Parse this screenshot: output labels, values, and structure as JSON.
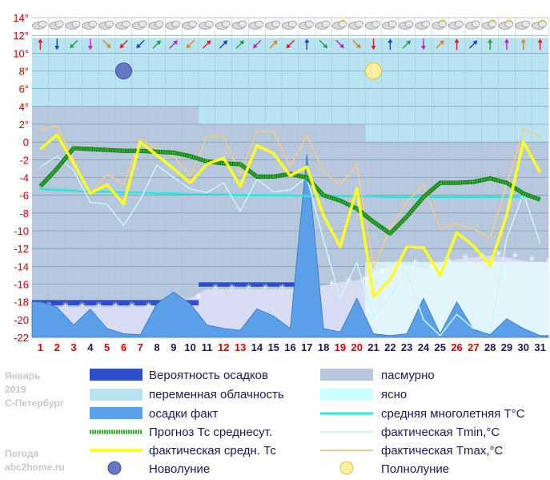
{
  "chart_data": {
    "type": "line",
    "ylim": [
      -22,
      14
    ],
    "y_ticks": [
      14,
      12,
      10,
      8,
      6,
      4,
      2,
      0,
      -2,
      -4,
      -6,
      -8,
      -10,
      -12,
      -14,
      -16,
      -18,
      -20,
      -22
    ],
    "y_tick_labels": [
      "14°",
      "12°",
      "10°",
      "8°",
      "6°",
      "4°",
      "2°",
      "0",
      "-2",
      "-4",
      "-6",
      "-8",
      "-10",
      "-12",
      "-14",
      "-16",
      "-18",
      "-20",
      "-22"
    ],
    "days": [
      1,
      2,
      3,
      4,
      5,
      6,
      7,
      8,
      9,
      10,
      11,
      12,
      13,
      14,
      15,
      16,
      17,
      18,
      19,
      20,
      21,
      22,
      23,
      24,
      25,
      26,
      27,
      28,
      29,
      30,
      31
    ],
    "day_labels": [
      "1",
      "2",
      "3",
      "4",
      "5",
      "6",
      "7",
      "8",
      "9",
      "10",
      "11",
      "12",
      "13",
      "14",
      "15",
      "16",
      "17",
      "18",
      "19",
      "20",
      "21",
      "22",
      "23",
      "24",
      "25",
      "26",
      "27",
      "28",
      "29",
      "30",
      "31"
    ],
    "weekend_days": [
      1,
      2,
      3,
      5,
      6,
      7,
      12,
      13,
      19,
      20,
      26,
      27
    ],
    "series": [
      {
        "key": "avg_norm",
        "name": "средняя многолетняя T°C",
        "color": "#22e8e0",
        "values": [
          -5.3,
          -5.4,
          -5.5,
          -5.6,
          -5.6,
          -5.7,
          -5.7,
          -5.8,
          -5.8,
          -5.9,
          -5.9,
          -5.9,
          -6.0,
          -6.0,
          -6.0,
          -6.0,
          -6.1,
          -6.1,
          -6.1,
          -6.1,
          -6.1,
          -6.2,
          -6.2,
          -6.2,
          -6.2,
          -6.2,
          -6.2,
          -6.2,
          -6.2,
          -6.2,
          -6.2
        ]
      },
      {
        "key": "tmin",
        "name": "фактическая Tmin,°C",
        "color": "#c8f8f8",
        "values": [
          -2.8,
          -1.6,
          -3.2,
          -6.8,
          -7.0,
          -9.4,
          -6.5,
          -2.6,
          -4.0,
          -5.3,
          -5.7,
          -4.6,
          -7.8,
          -4.2,
          -5.6,
          -5.4,
          -4.0,
          -11.0,
          -17.6,
          -13.6,
          -19.8,
          -17.4,
          -14.6,
          -20.0,
          -21.8,
          -19.4,
          -21.0,
          -21.4,
          -10.8,
          -5.8,
          -11.4
        ]
      },
      {
        "key": "tmax",
        "name": "фактическая Tmax,°C",
        "color": "#f8c888",
        "values": [
          1.4,
          1.8,
          -2.0,
          -5.8,
          -3.6,
          -4.8,
          0.4,
          -0.8,
          -1.6,
          -3.8,
          0.6,
          0.6,
          -3.6,
          1.2,
          1.2,
          -2.8,
          0.8,
          -3.4,
          -4.8,
          -2.6,
          -14.2,
          -9.8,
          -6.8,
          -4.8,
          -9.8,
          -9.2,
          -9.8,
          -10.8,
          -4.8,
          1.4,
          0.6
        ]
      },
      {
        "key": "forecast",
        "name": "Прогноз Тс среднесут.",
        "color": "#28b828",
        "values": [
          -5.0,
          -3.0,
          -0.7,
          -0.8,
          -0.9,
          -1.0,
          -1.0,
          -1.1,
          -1.2,
          -1.6,
          -2.2,
          -2.4,
          -2.5,
          -3.9,
          -3.9,
          -3.6,
          -4.0,
          -6.0,
          -6.6,
          -7.5,
          -9.0,
          -10.3,
          -8.4,
          -6.2,
          -4.6,
          -4.6,
          -4.5,
          -4.1,
          -4.6,
          -5.8,
          -6.5
        ]
      },
      {
        "key": "actual",
        "name": "фактическая средн. Тс",
        "color": "#ffff20",
        "values": [
          -0.8,
          0.8,
          -2.4,
          -5.8,
          -4.8,
          -7.0,
          0.0,
          -1.5,
          -3.0,
          -4.6,
          -2.5,
          -1.8,
          -5.0,
          -0.4,
          -1.3,
          -3.8,
          -2.8,
          -8.3,
          -11.8,
          -5.2,
          -17.4,
          -15.5,
          -11.8,
          -11.9,
          -15.0,
          -10.2,
          -11.7,
          -13.9,
          -8.2,
          0.0,
          -3.4
        ]
      }
    ],
    "precip_fact": [
      -18.0,
      -18.6,
      -20.6,
      -18.8,
      -21.0,
      -21.6,
      -21.7,
      -18.2,
      -16.9,
      -18.2,
      -20.6,
      -21.0,
      -21.2,
      -18.8,
      -19.6,
      -21.0,
      -1.4,
      -21.0,
      -21.4,
      -17.6,
      -21.6,
      -21.8,
      -21.6,
      -17.6,
      -21.6,
      -18.0,
      -21.1,
      -21.7,
      -19.9,
      -21.0,
      -21.8
    ],
    "overcast_tops": [
      -18.6,
      -18.6,
      -18.6,
      -18.6,
      -18.6,
      -18.6,
      -18.6,
      -18.4,
      -18.0,
      -17.6,
      -16.6,
      -16.6,
      -16.6,
      -16.6,
      -16.6,
      -16.6,
      -16.4,
      -16.2,
      -15.8,
      -15.6,
      -14.8,
      -14.0,
      -13.8,
      -14.2,
      -13.6,
      -13.2,
      -13.0,
      -12.8,
      -13.0,
      -13.4,
      -13.6
    ],
    "precip_probability_bands": [
      {
        "from_day": 0.5,
        "to_day": 10.5,
        "top": -17.8,
        "bottom": -18.4
      },
      {
        "from_day": 10.5,
        "to_day": 16.5,
        "top": -15.8,
        "bottom": -16.3
      }
    ],
    "cloud_zones": [
      {
        "from_day": 0.5,
        "to_day": 10.5,
        "kind": "overcast",
        "ymin": -22,
        "ymax": 4
      },
      {
        "from_day": 0.5,
        "to_day": 10.5,
        "kind": "partly",
        "ymin": 4,
        "ymax": 10
      },
      {
        "from_day": 10.5,
        "to_day": 20.5,
        "kind": "overcast",
        "ymin": -22,
        "ymax": 2
      },
      {
        "from_day": 10.5,
        "to_day": 20.5,
        "kind": "partly",
        "ymin": 2,
        "ymax": 10
      },
      {
        "from_day": 20.5,
        "to_day": 31.5,
        "kind": "overcast",
        "ymin": -22,
        "ymax": 0
      },
      {
        "from_day": 20.5,
        "to_day": 31.5,
        "kind": "partly",
        "ymin": 0,
        "ymax": 10
      }
    ],
    "moons": [
      {
        "day": 6,
        "phase": "new",
        "y": 8
      },
      {
        "day": 21,
        "phase": "full",
        "y": 8
      }
    ],
    "wind_arrows": [
      "n",
      "s",
      "sw",
      "s",
      "se",
      "sw",
      "sw",
      "ne",
      "ne",
      "sw",
      "ne",
      "ne",
      "ne",
      "sw",
      "ne",
      "sw",
      "n",
      "se",
      "se",
      "se",
      "s",
      "n",
      "ne",
      "s",
      "ne",
      "n",
      "ne",
      "n",
      "n",
      "n",
      "n"
    ],
    "sky_icons": [
      "cloud",
      "cloud",
      "cloud",
      "cloud",
      "cloud",
      "cloud",
      "cloud",
      "cloud",
      "cloud",
      "cloud",
      "cloud",
      "cloud",
      "cloud",
      "cloud",
      "cloud",
      "cloud",
      "cloud",
      "cloud",
      "sun",
      "cloud",
      "cloud",
      "cloud",
      "cloud",
      "cloud",
      "sun",
      "cloud",
      "cloud",
      "sun",
      "sun",
      "cloud",
      "sun"
    ]
  },
  "legend": {
    "precip_prob": "Вероятность осадков",
    "partly_cloudy": "переменная облачность",
    "precip_fact": "осадки факт",
    "forecast": "Прогноз Тс среднесут.",
    "actual_avg": "фактическая средн. Тс",
    "new_moon": "Новолуние",
    "overcast": "пасмурно",
    "clear": "ясно",
    "avg_norm": "средняя многолетняя T°C",
    "tmin": "фактическая Tmin,°C",
    "tmax": "фактическая Tmax,°C",
    "full_moon": "Полнолуние"
  },
  "sidebar": {
    "month": "Январь",
    "year": "2019",
    "city": "С-Петербург",
    "brand1": "Погода",
    "brand2": "abc2home.ru"
  },
  "colors": {
    "precip_prob": "#2f4fc8",
    "partly_cloudy": "#b8e4f0",
    "precip_fact": "#5aa0e8",
    "overcast": "#b8c8dc",
    "clear": "#ccffff",
    "weekend": "#e00000",
    "weekday": "#1a1a5a"
  }
}
